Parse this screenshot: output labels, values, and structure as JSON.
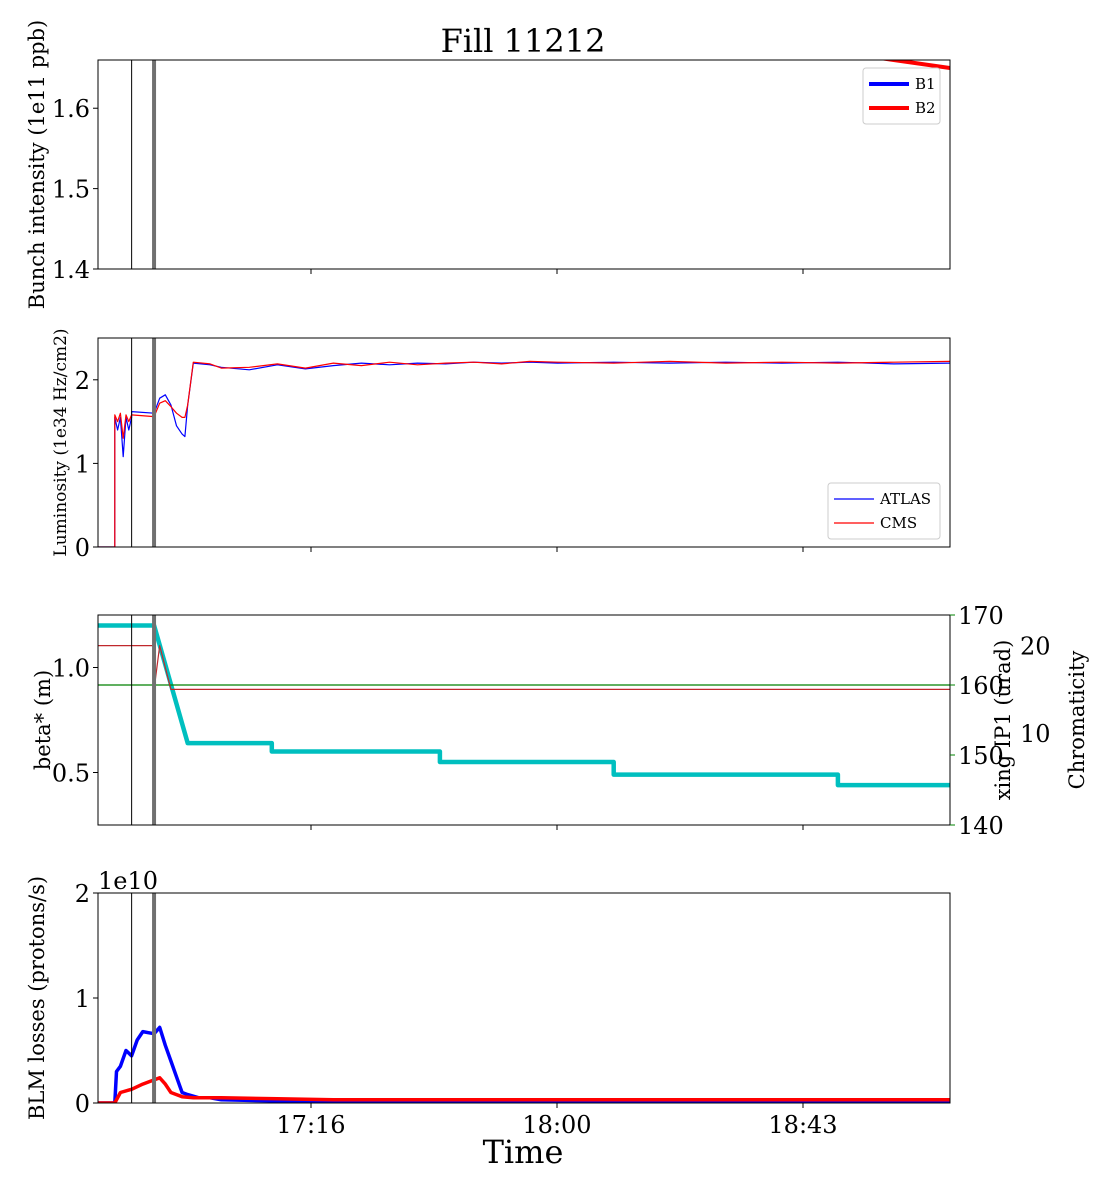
{
  "figure": {
    "title": "Fill 11212",
    "xlabel": "Time",
    "x_tick_labels": [
      "17:16",
      "18:00",
      "18:43"
    ]
  },
  "chart_data": [
    {
      "type": "line",
      "panel": "bunch-intensity",
      "ylabel": "Bunch intensity (1e11 ppb)",
      "ylim": [
        1.4,
        1.66
      ],
      "yticks": [
        1.4,
        1.5,
        1.6
      ],
      "xlim": [
        "16:38",
        "19:10"
      ],
      "legend": "top-right",
      "series": [
        {
          "name": "B1",
          "color": "#0000ff",
          "x": [],
          "y": []
        },
        {
          "name": "B2",
          "color": "#ff0000",
          "x": [
            "18:50",
            "19:10"
          ],
          "y": [
            1.67,
            1.65
          ]
        }
      ],
      "vlines": [
        {
          "x": "16:44",
          "kind": "thin"
        },
        {
          "x": "16:48",
          "kind": "thick"
        }
      ]
    },
    {
      "type": "line",
      "panel": "luminosity",
      "ylabel": "Luminosity (1e34 Hz/cm2)",
      "ylim": [
        0,
        2.5
      ],
      "yticks": [
        0,
        1,
        2
      ],
      "xlim": [
        "16:38",
        "19:10"
      ],
      "legend": "bottom-right",
      "series": [
        {
          "name": "ATLAS",
          "color": "#0000ff",
          "x": [
            "16:38",
            "16:41",
            "16:41",
            "16:41.5",
            "16:42",
            "16:42.5",
            "16:43",
            "16:43.5",
            "16:44",
            "16:44",
            "16:48",
            "16:49",
            "16:50",
            "16:51",
            "16:52",
            "16:53",
            "16:53.5",
            "16:54",
            "16:55",
            "16:58",
            "17:00",
            "17:05",
            "17:10",
            "17:15",
            "17:20",
            "17:25",
            "17:30",
            "17:35",
            "17:40",
            "17:45",
            "17:50",
            "17:55",
            "18:00",
            "18:10",
            "18:20",
            "18:30",
            "18:40",
            "18:50",
            "19:00",
            "19:10"
          ],
          "y": [
            0,
            0,
            1.55,
            1.4,
            1.55,
            1.08,
            1.55,
            1.4,
            1.55,
            1.62,
            1.6,
            1.78,
            1.82,
            1.7,
            1.45,
            1.35,
            1.32,
            1.7,
            2.2,
            2.18,
            2.15,
            2.12,
            2.18,
            2.13,
            2.17,
            2.2,
            2.18,
            2.2,
            2.19,
            2.21,
            2.2,
            2.21,
            2.2,
            2.21,
            2.2,
            2.21,
            2.2,
            2.21,
            2.19,
            2.2
          ]
        },
        {
          "name": "CMS",
          "color": "#ff0000",
          "x": [
            "16:38",
            "16:41",
            "16:41",
            "16:41.5",
            "16:42",
            "16:42.5",
            "16:43",
            "16:43.5",
            "16:44",
            "16:44",
            "16:48",
            "16:49",
            "16:50",
            "16:51",
            "16:52",
            "16:53",
            "16:53.5",
            "16:54",
            "16:55",
            "16:58",
            "17:00",
            "17:05",
            "17:10",
            "17:15",
            "17:20",
            "17:25",
            "17:30",
            "17:35",
            "17:40",
            "17:45",
            "17:50",
            "17:55",
            "18:00",
            "18:10",
            "18:20",
            "18:30",
            "18:40",
            "18:50",
            "19:00",
            "19:10"
          ],
          "y": [
            0,
            0,
            1.58,
            1.5,
            1.6,
            1.3,
            1.58,
            1.5,
            1.58,
            1.58,
            1.56,
            1.72,
            1.75,
            1.68,
            1.6,
            1.55,
            1.55,
            1.7,
            2.21,
            2.19,
            2.14,
            2.15,
            2.19,
            2.14,
            2.2,
            2.17,
            2.21,
            2.18,
            2.2,
            2.21,
            2.19,
            2.22,
            2.21,
            2.2,
            2.22,
            2.2,
            2.21,
            2.2,
            2.21,
            2.22
          ]
        }
      ],
      "vlines": [
        {
          "x": "16:44",
          "kind": "thin"
        },
        {
          "x": "16:48",
          "kind": "thick"
        }
      ]
    },
    {
      "type": "line",
      "panel": "optics",
      "ylabel": "beta* (m)",
      "ylabel_color": "#00bfbf",
      "ylim": [
        0.25,
        1.25
      ],
      "yticks": [
        0.5,
        1.0
      ],
      "ylabel2": "xing IP1 (urad)",
      "ylabel2_color": "#008000",
      "ylim2": [
        140,
        170
      ],
      "yticks2": [
        140,
        150,
        160,
        170
      ],
      "ylabel3": "Chromaticity",
      "ylabel3_color": "#c0282c",
      "ylim3": [
        -0.5,
        23.5
      ],
      "yticks3": [
        10,
        20
      ],
      "xlim": [
        "16:38",
        "19:10"
      ],
      "series": [
        {
          "name": "",
          "axis": "beta",
          "color": "#00bfbf",
          "x": [
            "16:38",
            "16:48",
            "16:48",
            "16:54",
            "16:54",
            "17:09",
            "17:09",
            "17:39",
            "17:39",
            "18:10",
            "18:10",
            "18:50",
            "18:50",
            "19:10"
          ],
          "y": [
            1.2,
            1.2,
            1.2,
            0.64,
            0.64,
            0.64,
            0.6,
            0.6,
            0.55,
            0.55,
            0.49,
            0.49,
            0.44,
            0.44
          ]
        },
        {
          "name": "",
          "axis": "xing",
          "color": "#008000",
          "x": [
            "16:38",
            "19:10"
          ],
          "y": [
            160,
            160
          ]
        },
        {
          "name": "",
          "axis": "chroma",
          "color": "#c0282c",
          "x": [
            "16:38",
            "16:48",
            "16:48",
            "16:49",
            "16:51",
            "19:10"
          ],
          "y": [
            20,
            20,
            15,
            20,
            15,
            15
          ]
        }
      ],
      "vlines": [
        {
          "x": "16:44",
          "kind": "thin"
        },
        {
          "x": "16:48",
          "kind": "thick"
        }
      ]
    },
    {
      "type": "line",
      "panel": "blm-losses",
      "ylabel": "BLM losses (protons/s)",
      "scale_label": "1e10",
      "ylim": [
        0,
        2
      ],
      "yticks": [
        0,
        1,
        2
      ],
      "xlim": [
        "16:38",
        "19:10"
      ],
      "series": [
        {
          "name": "",
          "color": "#0000ff",
          "x": [
            "16:38",
            "16:41",
            "16:41.3",
            "16:42",
            "16:43",
            "16:44",
            "16:45",
            "16:46",
            "16:47",
            "16:48",
            "16:49",
            "16:50",
            "16:51",
            "16:52",
            "16:53",
            "16:54",
            "16:56",
            "16:58",
            "17:00",
            "17:10",
            "19:10"
          ],
          "y": [
            0,
            0,
            0.3,
            0.35,
            0.5,
            0.45,
            0.6,
            0.68,
            0.67,
            0.66,
            0.72,
            0.55,
            0.4,
            0.25,
            0.1,
            0.08,
            0.05,
            0.05,
            0.03,
            0.02,
            0.02
          ]
        },
        {
          "name": "",
          "color": "#ff0000",
          "x": [
            "16:38",
            "16:41",
            "16:42",
            "16:44",
            "16:46",
            "16:47",
            "16:48",
            "16:49",
            "16:50",
            "16:51",
            "16:52",
            "16:53",
            "16:55",
            "17:00",
            "17:10",
            "17:20",
            "17:30",
            "18:00",
            "19:10"
          ],
          "y": [
            0,
            0,
            0.1,
            0.13,
            0.18,
            0.2,
            0.22,
            0.24,
            0.18,
            0.1,
            0.08,
            0.06,
            0.05,
            0.05,
            0.04,
            0.03,
            0.03,
            0.03,
            0.03
          ]
        }
      ],
      "vlines": [
        {
          "x": "16:44",
          "kind": "thin"
        },
        {
          "x": "16:48",
          "kind": "thick"
        }
      ]
    }
  ]
}
